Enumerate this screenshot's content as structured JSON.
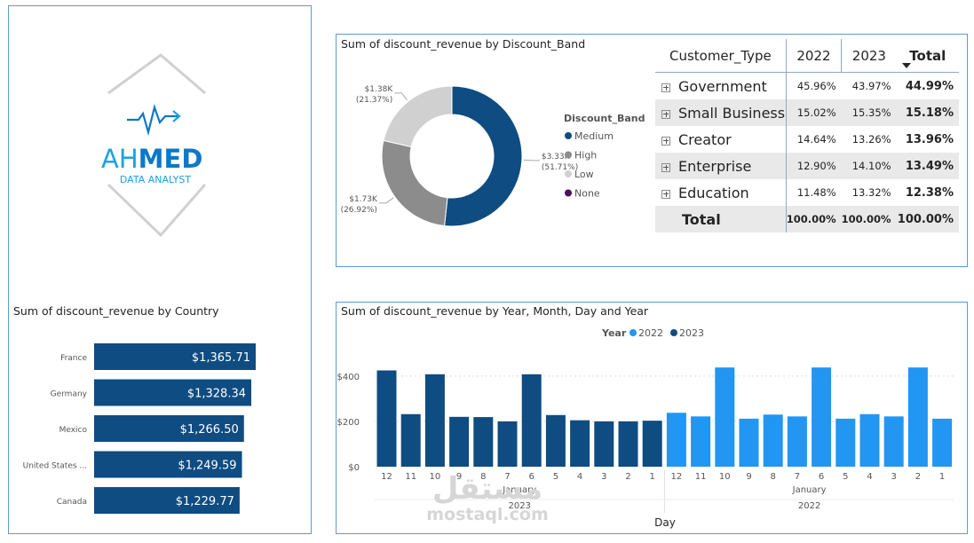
{
  "logo": {
    "name_part1": "AH",
    "name_part2": "MED",
    "subtitle": "DATA ANALYST",
    "colors": {
      "primary": "#1ba1e2",
      "secondary": "#0e78c6",
      "frame": "#c8c8c8"
    }
  },
  "watermark": {
    "arabic": "مستقل",
    "latin": "mostaql.com"
  },
  "country_chart": {
    "title": "Sum of discount_revenue by Country",
    "chart_data": {
      "type": "bar",
      "orientation": "horizontal",
      "categories": [
        "France",
        "Germany",
        "Mexico",
        "United States ...",
        "Canada"
      ],
      "values": [
        1365.71,
        1328.34,
        1266.5,
        1249.59,
        1229.77
      ],
      "labels": [
        "$1,365.71",
        "$1,328.34",
        "$1,266.50",
        "$1,249.59",
        "$1,229.77"
      ],
      "color": "#0f4c81"
    }
  },
  "donut_chart": {
    "title": "Sum of discount_revenue by Discount_Band",
    "legend_title": "Discount_Band",
    "chart_data": {
      "type": "pie",
      "categories": [
        "Medium",
        "High",
        "Low",
        "None"
      ],
      "values": [
        3330,
        1730,
        1380,
        0
      ],
      "percents": [
        51.71,
        26.92,
        21.37,
        0
      ],
      "value_labels": [
        "$3.33K",
        "$1.73K",
        "$1.38K",
        ""
      ],
      "percent_labels": [
        "(51.71%)",
        "(26.92%)",
        "(21.37%)",
        ""
      ],
      "colors": [
        "#0f4c81",
        "#8c8c8c",
        "#d0d0d0",
        "#4b1060"
      ],
      "legend_position": "right"
    }
  },
  "matrix": {
    "headers": [
      "Customer_Type",
      "2022",
      "2023",
      "Total"
    ],
    "rows": [
      {
        "name": "Government",
        "y2022": "45.96%",
        "y2023": "43.97%",
        "total": "44.99%"
      },
      {
        "name": "Small Business",
        "y2022": "15.02%",
        "y2023": "15.35%",
        "total": "15.18%"
      },
      {
        "name": "Creator",
        "y2022": "14.64%",
        "y2023": "13.26%",
        "total": "13.96%"
      },
      {
        "name": "Enterprise",
        "y2022": "12.90%",
        "y2023": "14.10%",
        "total": "13.49%"
      },
      {
        "name": "Education",
        "y2022": "11.48%",
        "y2023": "13.32%",
        "total": "12.38%"
      }
    ],
    "total_row": {
      "name": "Total",
      "y2022": "100.00%",
      "y2023": "100.00%",
      "total": "100.00%"
    }
  },
  "column_chart": {
    "title": "Sum of discount_revenue by Year, Month, Day and Year",
    "legend_title": "Year",
    "legend": [
      "2022",
      "2023"
    ],
    "colors": {
      "2022": "#2196f3",
      "2023": "#0f4c81"
    },
    "xlabel": "Day",
    "chart_data": {
      "type": "bar",
      "ylim": [
        0,
        470
      ],
      "yticks": [
        0,
        200,
        400
      ],
      "ytick_labels": [
        "$0",
        "$200",
        "$400"
      ],
      "groups": [
        {
          "year_label": "2023",
          "month_label": "January",
          "series": "2023",
          "days": [
            "12",
            "11",
            "10",
            "9",
            "8",
            "7",
            "6",
            "5",
            "4",
            "3",
            "2",
            "1"
          ],
          "values": [
            425,
            232,
            408,
            220,
            219,
            200,
            408,
            228,
            205,
            200,
            200,
            203
          ]
        },
        {
          "year_label": "2022",
          "month_label": "January",
          "series": "2022",
          "days": [
            "12",
            "11",
            "10",
            "9",
            "8",
            "7",
            "6",
            "5",
            "4",
            "3",
            "2",
            "1"
          ],
          "values": [
            238,
            222,
            438,
            212,
            230,
            222,
            438,
            212,
            232,
            222,
            438,
            212
          ]
        }
      ],
      "legend_position": "top"
    }
  }
}
